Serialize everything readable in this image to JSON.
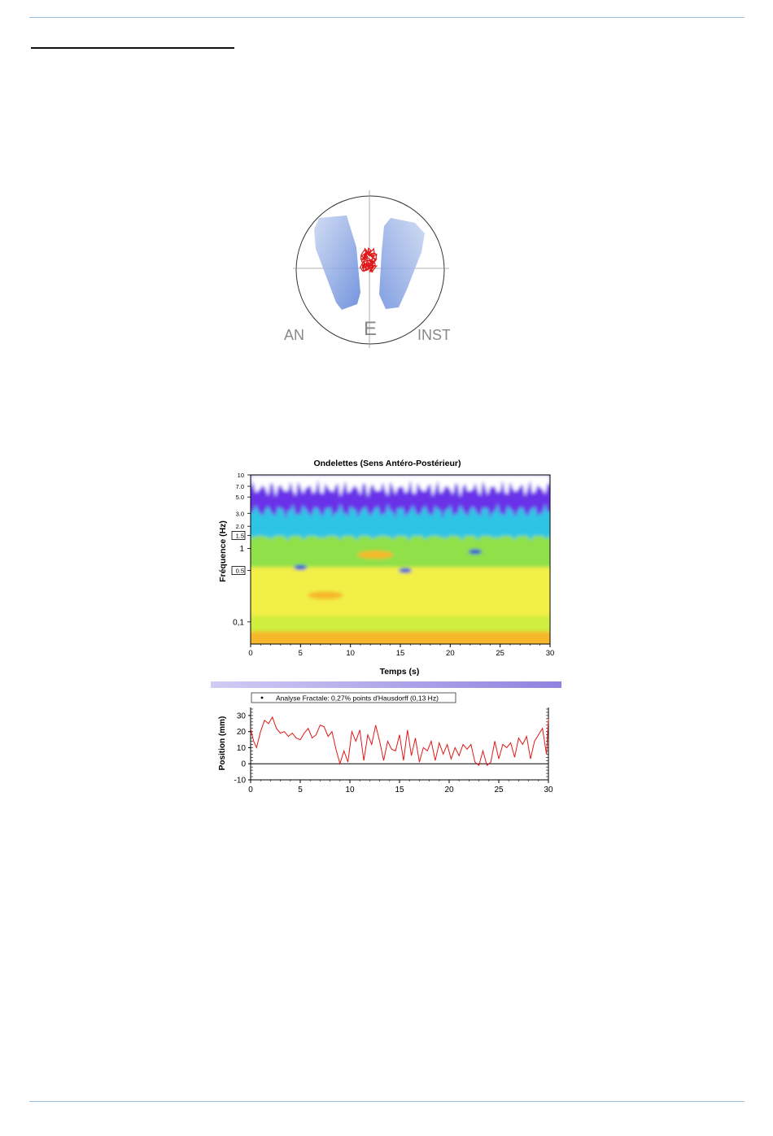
{
  "stabilogram": {
    "labels": [
      "AN",
      "E",
      "INST"
    ],
    "colors": {
      "foot": "#9eb7e6",
      "trace": "#e01818",
      "circle": "#333333"
    }
  },
  "chart_data": [
    {
      "type": "heatmap",
      "title": "Ondelettes (Sens Antéro-Postérieur)",
      "xlabel": "Temps (s)",
      "ylabel": "Fréquence (Hz)",
      "xlim": [
        0,
        30
      ],
      "ylim": [
        0.05,
        10
      ],
      "yscale": "log",
      "x_ticks": [
        0,
        5,
        10,
        15,
        20,
        25,
        30
      ],
      "y_tick_labels": [
        "10",
        "7.0",
        "5.0",
        "3.0",
        "2.0",
        "1.5",
        "1",
        "0.5",
        "0,1"
      ],
      "y_tick_values": [
        10,
        7,
        5,
        3,
        2,
        1.5,
        1,
        0.5,
        0.1
      ],
      "boxed_ticks": [
        "1.5",
        "0.5"
      ],
      "bands": [
        {
          "fmin": 0.05,
          "fmax": 0.08,
          "level": "orange"
        },
        {
          "fmin": 0.08,
          "fmax": 0.13,
          "level": "yellow-green"
        },
        {
          "fmin": 0.13,
          "fmax": 0.6,
          "level": "yellow"
        },
        {
          "fmin": 0.6,
          "fmax": 1.6,
          "level": "green"
        },
        {
          "fmin": 1.6,
          "fmax": 3.5,
          "level": "cyan"
        },
        {
          "fmin": 3.5,
          "fmax": 10,
          "level": "violet"
        }
      ],
      "hotspots": [
        {
          "t": 7.5,
          "f": 0.23,
          "level": "orange"
        },
        {
          "t": 12.5,
          "f": 0.82,
          "level": "orange"
        },
        {
          "t": 15.5,
          "f": 0.5,
          "level": "blue"
        },
        {
          "t": 22.5,
          "f": 0.9,
          "level": "blue"
        },
        {
          "t": 5,
          "f": 0.55,
          "level": "blue"
        }
      ]
    },
    {
      "type": "line",
      "legend": "Analyse Fractale: 0,27% points d'Hausdorff (0,13 Hz)",
      "xlabel": "",
      "ylabel": "Position (mm)",
      "xlim": [
        0,
        30
      ],
      "ylim": [
        -10,
        35
      ],
      "x_ticks": [
        0,
        5,
        10,
        15,
        20,
        25,
        30
      ],
      "y_ticks": [
        -10,
        0,
        10,
        20,
        30
      ],
      "reference_line": 0,
      "series": [
        {
          "color": "#e01818",
          "x": [
            0,
            0.3,
            0.6,
            1,
            1.4,
            1.8,
            2.2,
            2.6,
            3,
            3.4,
            3.8,
            4.2,
            4.6,
            5,
            5.4,
            5.8,
            6.2,
            6.6,
            7,
            7.4,
            7.8,
            8.2,
            8.6,
            9,
            9.4,
            9.8,
            10.2,
            10.6,
            11,
            11.4,
            11.8,
            12.2,
            12.6,
            13,
            13.4,
            13.8,
            14.2,
            14.6,
            15,
            15.4,
            15.8,
            16.2,
            16.6,
            17,
            17.4,
            17.8,
            18.2,
            18.6,
            19,
            19.4,
            19.8,
            20.2,
            20.6,
            21,
            21.4,
            21.8,
            22.2,
            22.6,
            23,
            23.4,
            23.8,
            24.2,
            24.6,
            25,
            25.4,
            25.8,
            26.2,
            26.6,
            27,
            27.4,
            27.8,
            28.2,
            28.6,
            29,
            29.4,
            29.8,
            30
          ],
          "y": [
            22,
            14,
            10,
            20,
            27,
            25,
            29,
            22,
            19,
            20,
            17,
            19,
            16,
            15,
            19,
            22,
            16,
            18,
            24,
            23,
            17,
            20,
            9,
            0,
            8,
            1,
            20,
            14,
            21,
            2,
            18,
            12,
            24,
            14,
            2,
            14,
            9,
            8,
            18,
            2,
            21,
            5,
            16,
            1,
            10,
            8,
            14,
            2,
            13,
            6,
            12,
            3,
            10,
            5,
            12,
            9,
            12,
            1,
            -1,
            8,
            -1,
            1,
            14,
            3,
            12,
            10,
            13,
            4,
            16,
            12,
            17,
            3,
            14,
            18,
            22,
            6,
            28
          ]
        }
      ]
    }
  ]
}
